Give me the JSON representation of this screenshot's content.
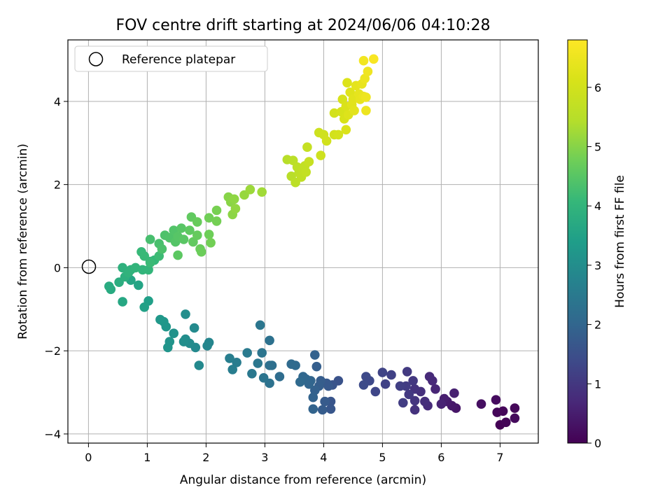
{
  "chart_data": {
    "type": "scatter",
    "title": "FOV centre drift starting at 2024/06/06 04:10:28",
    "xlabel": "Angular distance from reference (arcmin)",
    "ylabel": "Rotation from reference (arcmin)",
    "xlim": [
      -0.35,
      7.65
    ],
    "ylim": [
      -4.22,
      5.48
    ],
    "xticks": [
      0,
      1,
      2,
      3,
      4,
      5,
      6,
      7
    ],
    "yticks": [
      -4,
      -2,
      0,
      2,
      4
    ],
    "grid": true,
    "legend": {
      "placement": "top-left",
      "entries": [
        "Reference platepar"
      ]
    },
    "reference_point": {
      "x": 0,
      "y": 0
    },
    "colorbar": {
      "label": "Hours from first FF file",
      "range": [
        0,
        6.8
      ],
      "ticks": [
        0,
        1,
        2,
        3,
        4,
        5,
        6
      ],
      "colormap": "viridis"
    },
    "points": [
      {
        "x": 7.0,
        "y": -3.78,
        "h": 0.02
      },
      {
        "x": 7.1,
        "y": -3.72,
        "h": 0.05
      },
      {
        "x": 6.95,
        "y": -3.48,
        "h": 0.08
      },
      {
        "x": 7.05,
        "y": -3.45,
        "h": 0.1
      },
      {
        "x": 7.25,
        "y": -3.38,
        "h": 0.12
      },
      {
        "x": 7.25,
        "y": -3.62,
        "h": 0.15
      },
      {
        "x": 6.93,
        "y": -3.18,
        "h": 0.18
      },
      {
        "x": 6.68,
        "y": -3.28,
        "h": 0.25
      },
      {
        "x": 6.25,
        "y": -3.38,
        "h": 0.35
      },
      {
        "x": 6.18,
        "y": -3.32,
        "h": 0.4
      },
      {
        "x": 6.1,
        "y": -3.22,
        "h": 0.45
      },
      {
        "x": 6.05,
        "y": -3.15,
        "h": 0.5
      },
      {
        "x": 6.22,
        "y": -3.02,
        "h": 0.55
      },
      {
        "x": 6.0,
        "y": -3.28,
        "h": 0.6
      },
      {
        "x": 5.9,
        "y": -2.92,
        "h": 0.65
      },
      {
        "x": 5.85,
        "y": -2.72,
        "h": 0.7
      },
      {
        "x": 5.8,
        "y": -2.62,
        "h": 0.72
      },
      {
        "x": 5.77,
        "y": -3.32,
        "h": 0.75
      },
      {
        "x": 5.72,
        "y": -3.22,
        "h": 0.8
      },
      {
        "x": 5.65,
        "y": -2.98,
        "h": 0.85
      },
      {
        "x": 5.55,
        "y": -3.42,
        "h": 0.88
      },
      {
        "x": 5.55,
        "y": -2.92,
        "h": 0.9
      },
      {
        "x": 5.55,
        "y": -3.2,
        "h": 0.95
      },
      {
        "x": 5.52,
        "y": -2.72,
        "h": 1.0
      },
      {
        "x": 5.45,
        "y": -3.05,
        "h": 1.02
      },
      {
        "x": 5.42,
        "y": -2.5,
        "h": 1.05
      },
      {
        "x": 5.4,
        "y": -2.85,
        "h": 1.1
      },
      {
        "x": 5.35,
        "y": -3.25,
        "h": 1.12
      },
      {
        "x": 5.3,
        "y": -2.85,
        "h": 1.15
      },
      {
        "x": 5.15,
        "y": -2.58,
        "h": 1.2
      },
      {
        "x": 5.05,
        "y": -2.8,
        "h": 1.22
      },
      {
        "x": 5.0,
        "y": -2.52,
        "h": 1.25
      },
      {
        "x": 4.88,
        "y": -2.98,
        "h": 1.3
      },
      {
        "x": 4.78,
        "y": -2.72,
        "h": 1.35
      },
      {
        "x": 4.72,
        "y": -2.62,
        "h": 1.38
      },
      {
        "x": 4.68,
        "y": -2.82,
        "h": 1.4
      },
      {
        "x": 4.25,
        "y": -2.72,
        "h": 1.55
      },
      {
        "x": 4.15,
        "y": -2.82,
        "h": 1.6
      },
      {
        "x": 4.12,
        "y": -3.22,
        "h": 1.62
      },
      {
        "x": 4.12,
        "y": -3.4,
        "h": 1.65
      },
      {
        "x": 4.08,
        "y": -2.85,
        "h": 1.7
      },
      {
        "x": 4.05,
        "y": -2.78,
        "h": 1.72
      },
      {
        "x": 4.02,
        "y": -3.22,
        "h": 1.75
      },
      {
        "x": 3.98,
        "y": -3.42,
        "h": 1.78
      },
      {
        "x": 3.95,
        "y": -2.72,
        "h": 1.8
      },
      {
        "x": 3.92,
        "y": -2.85,
        "h": 1.82
      },
      {
        "x": 3.88,
        "y": -2.38,
        "h": 1.85
      },
      {
        "x": 3.85,
        "y": -2.95,
        "h": 1.88
      },
      {
        "x": 3.85,
        "y": -2.1,
        "h": 1.9
      },
      {
        "x": 3.82,
        "y": -3.12,
        "h": 1.92
      },
      {
        "x": 3.82,
        "y": -3.4,
        "h": 1.95
      },
      {
        "x": 3.78,
        "y": -2.72,
        "h": 1.97
      },
      {
        "x": 3.75,
        "y": -2.8,
        "h": 2.0
      },
      {
        "x": 3.7,
        "y": -2.68,
        "h": 2.02
      },
      {
        "x": 3.65,
        "y": -2.62,
        "h": 2.05
      },
      {
        "x": 3.6,
        "y": -2.75,
        "h": 2.08
      },
      {
        "x": 3.52,
        "y": -2.35,
        "h": 2.1
      },
      {
        "x": 3.45,
        "y": -2.32,
        "h": 2.12
      },
      {
        "x": 3.25,
        "y": -2.62,
        "h": 2.18
      },
      {
        "x": 3.12,
        "y": -2.35,
        "h": 2.22
      },
      {
        "x": 3.08,
        "y": -2.35,
        "h": 2.25
      },
      {
        "x": 3.08,
        "y": -1.75,
        "h": 2.28
      },
      {
        "x": 3.08,
        "y": -2.78,
        "h": 2.3
      },
      {
        "x": 2.98,
        "y": -2.65,
        "h": 2.35
      },
      {
        "x": 2.95,
        "y": -2.05,
        "h": 2.38
      },
      {
        "x": 2.92,
        "y": -1.38,
        "h": 2.4
      },
      {
        "x": 2.88,
        "y": -2.3,
        "h": 2.42
      },
      {
        "x": 2.78,
        "y": -2.55,
        "h": 2.45
      },
      {
        "x": 2.7,
        "y": -2.05,
        "h": 2.5
      },
      {
        "x": 2.52,
        "y": -2.28,
        "h": 2.55
      },
      {
        "x": 2.45,
        "y": -2.45,
        "h": 2.6
      },
      {
        "x": 2.4,
        "y": -2.18,
        "h": 2.62
      },
      {
        "x": 2.05,
        "y": -1.8,
        "h": 2.8
      },
      {
        "x": 2.02,
        "y": -1.88,
        "h": 2.82
      },
      {
        "x": 1.88,
        "y": -2.35,
        "h": 2.88
      },
      {
        "x": 1.82,
        "y": -1.92,
        "h": 2.9
      },
      {
        "x": 1.8,
        "y": -1.45,
        "h": 2.92
      },
      {
        "x": 1.72,
        "y": -1.82,
        "h": 2.95
      },
      {
        "x": 1.65,
        "y": -1.72,
        "h": 2.98
      },
      {
        "x": 1.65,
        "y": -1.12,
        "h": 3.0
      },
      {
        "x": 1.62,
        "y": -1.78,
        "h": 3.02
      },
      {
        "x": 1.45,
        "y": -1.58,
        "h": 3.1
      },
      {
        "x": 1.38,
        "y": -1.78,
        "h": 3.15
      },
      {
        "x": 1.35,
        "y": -1.92,
        "h": 3.18
      },
      {
        "x": 1.32,
        "y": -1.42,
        "h": 3.2
      },
      {
        "x": 1.28,
        "y": -1.3,
        "h": 3.22
      },
      {
        "x": 1.22,
        "y": -1.25,
        "h": 3.25
      },
      {
        "x": 1.02,
        "y": -0.8,
        "h": 3.45
      },
      {
        "x": 0.95,
        "y": -0.95,
        "h": 3.48
      },
      {
        "x": 0.85,
        "y": -0.42,
        "h": 3.55
      },
      {
        "x": 0.72,
        "y": -0.3,
        "h": 3.6
      },
      {
        "x": 0.58,
        "y": -0.82,
        "h": 3.65
      },
      {
        "x": 0.38,
        "y": -0.52,
        "h": 3.72
      },
      {
        "x": 0.35,
        "y": -0.45,
        "h": 3.75
      },
      {
        "x": 0.52,
        "y": -0.35,
        "h": 3.8
      },
      {
        "x": 0.62,
        "y": -0.22,
        "h": 3.85
      },
      {
        "x": 0.58,
        "y": 0.0,
        "h": 3.9
      },
      {
        "x": 0.72,
        "y": -0.05,
        "h": 3.92
      },
      {
        "x": 0.68,
        "y": -0.12,
        "h": 3.95
      },
      {
        "x": 0.8,
        "y": 0.0,
        "h": 3.98
      },
      {
        "x": 0.92,
        "y": -0.05,
        "h": 4.0
      },
      {
        "x": 1.02,
        "y": -0.05,
        "h": 4.02
      },
      {
        "x": 1.05,
        "y": 0.15,
        "h": 4.05
      },
      {
        "x": 1.12,
        "y": 0.18,
        "h": 4.08
      },
      {
        "x": 0.9,
        "y": 0.38,
        "h": 4.1
      },
      {
        "x": 0.95,
        "y": 0.28,
        "h": 4.12
      },
      {
        "x": 1.05,
        "y": 0.12,
        "h": 4.15
      },
      {
        "x": 1.2,
        "y": 0.28,
        "h": 4.18
      },
      {
        "x": 1.05,
        "y": 0.68,
        "h": 4.3
      },
      {
        "x": 1.2,
        "y": 0.58,
        "h": 4.32
      },
      {
        "x": 1.25,
        "y": 0.45,
        "h": 4.35
      },
      {
        "x": 1.3,
        "y": 0.78,
        "h": 4.38
      },
      {
        "x": 1.38,
        "y": 0.72,
        "h": 4.4
      },
      {
        "x": 1.45,
        "y": 0.9,
        "h": 4.42
      },
      {
        "x": 1.48,
        "y": 0.62,
        "h": 4.45
      },
      {
        "x": 1.52,
        "y": 0.75,
        "h": 4.48
      },
      {
        "x": 1.58,
        "y": 0.95,
        "h": 4.5
      },
      {
        "x": 1.62,
        "y": 0.68,
        "h": 4.52
      },
      {
        "x": 1.52,
        "y": 0.3,
        "h": 4.55
      },
      {
        "x": 1.72,
        "y": 0.9,
        "h": 4.58
      },
      {
        "x": 1.75,
        "y": 1.22,
        "h": 4.6
      },
      {
        "x": 1.78,
        "y": 0.62,
        "h": 4.62
      },
      {
        "x": 1.85,
        "y": 0.78,
        "h": 4.65
      },
      {
        "x": 1.85,
        "y": 1.1,
        "h": 4.68
      },
      {
        "x": 1.9,
        "y": 0.45,
        "h": 4.7
      },
      {
        "x": 1.92,
        "y": 0.38,
        "h": 4.72
      },
      {
        "x": 2.05,
        "y": 0.8,
        "h": 4.75
      },
      {
        "x": 2.05,
        "y": 1.2,
        "h": 4.78
      },
      {
        "x": 2.08,
        "y": 0.6,
        "h": 4.8
      },
      {
        "x": 2.18,
        "y": 1.12,
        "h": 4.82
      },
      {
        "x": 2.18,
        "y": 1.38,
        "h": 4.85
      },
      {
        "x": 2.38,
        "y": 1.7,
        "h": 5.0
      },
      {
        "x": 2.42,
        "y": 1.58,
        "h": 5.02
      },
      {
        "x": 2.45,
        "y": 1.28,
        "h": 5.05
      },
      {
        "x": 2.48,
        "y": 1.65,
        "h": 5.08
      },
      {
        "x": 2.5,
        "y": 1.42,
        "h": 5.1
      },
      {
        "x": 2.65,
        "y": 1.75,
        "h": 5.15
      },
      {
        "x": 2.75,
        "y": 1.88,
        "h": 5.2
      },
      {
        "x": 2.95,
        "y": 1.82,
        "h": 5.25
      },
      {
        "x": 3.38,
        "y": 2.6,
        "h": 5.5
      },
      {
        "x": 3.45,
        "y": 2.2,
        "h": 5.52
      },
      {
        "x": 3.48,
        "y": 2.58,
        "h": 5.55
      },
      {
        "x": 3.52,
        "y": 2.05,
        "h": 5.58
      },
      {
        "x": 3.55,
        "y": 2.42,
        "h": 5.6
      },
      {
        "x": 3.58,
        "y": 2.28,
        "h": 5.62
      },
      {
        "x": 3.62,
        "y": 2.18,
        "h": 5.65
      },
      {
        "x": 3.65,
        "y": 2.35,
        "h": 5.68
      },
      {
        "x": 3.68,
        "y": 2.45,
        "h": 5.7
      },
      {
        "x": 3.7,
        "y": 2.3,
        "h": 5.72
      },
      {
        "x": 3.72,
        "y": 2.9,
        "h": 5.75
      },
      {
        "x": 3.75,
        "y": 2.55,
        "h": 5.78
      },
      {
        "x": 3.92,
        "y": 3.25,
        "h": 5.9
      },
      {
        "x": 3.95,
        "y": 2.7,
        "h": 5.92
      },
      {
        "x": 4.0,
        "y": 3.2,
        "h": 5.95
      },
      {
        "x": 4.05,
        "y": 3.05,
        "h": 5.98
      },
      {
        "x": 4.18,
        "y": 3.2,
        "h": 6.0
      },
      {
        "x": 4.18,
        "y": 3.72,
        "h": 6.02
      },
      {
        "x": 4.25,
        "y": 3.2,
        "h": 6.05
      },
      {
        "x": 4.3,
        "y": 3.75,
        "h": 6.08
      },
      {
        "x": 4.32,
        "y": 4.05,
        "h": 6.1
      },
      {
        "x": 4.35,
        "y": 3.58,
        "h": 6.12
      },
      {
        "x": 4.38,
        "y": 3.88,
        "h": 6.15
      },
      {
        "x": 4.38,
        "y": 3.32,
        "h": 6.18
      },
      {
        "x": 4.4,
        "y": 4.45,
        "h": 6.2
      },
      {
        "x": 4.42,
        "y": 3.68,
        "h": 6.22
      },
      {
        "x": 4.45,
        "y": 4.22,
        "h": 6.25
      },
      {
        "x": 4.48,
        "y": 3.92,
        "h": 6.28
      },
      {
        "x": 4.5,
        "y": 4.05,
        "h": 6.3
      },
      {
        "x": 4.52,
        "y": 3.78,
        "h": 6.32
      },
      {
        "x": 4.55,
        "y": 4.38,
        "h": 6.35
      },
      {
        "x": 4.6,
        "y": 4.18,
        "h": 6.38
      },
      {
        "x": 4.62,
        "y": 4.05,
        "h": 6.4
      },
      {
        "x": 4.65,
        "y": 4.42,
        "h": 6.42
      },
      {
        "x": 4.68,
        "y": 4.12,
        "h": 6.45
      },
      {
        "x": 4.7,
        "y": 4.55,
        "h": 6.48
      },
      {
        "x": 4.72,
        "y": 3.78,
        "h": 6.5
      },
      {
        "x": 4.72,
        "y": 4.1,
        "h": 6.52
      },
      {
        "x": 4.75,
        "y": 4.72,
        "h": 6.55
      },
      {
        "x": 4.68,
        "y": 4.98,
        "h": 6.6
      },
      {
        "x": 4.85,
        "y": 5.02,
        "h": 6.7
      }
    ]
  }
}
